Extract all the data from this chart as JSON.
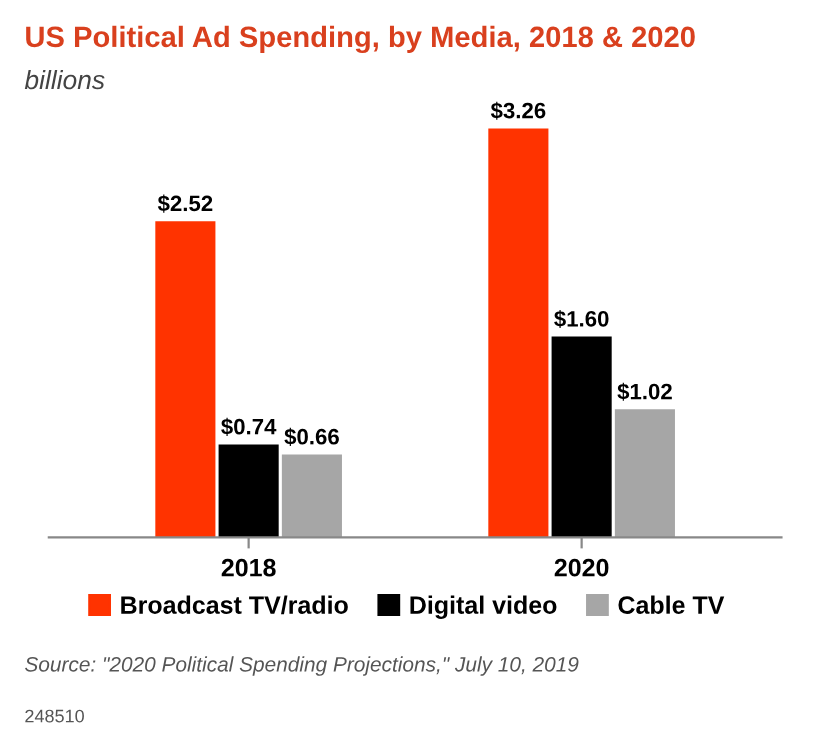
{
  "chart_data": {
    "type": "bar",
    "title": "US Political Ad Spending, by Media, 2018 & 2020",
    "subtitle": "billions",
    "categories": [
      "2018",
      "2020"
    ],
    "series": [
      {
        "name": "Broadcast TV/radio",
        "color": "#ff3300",
        "values": [
          2.52,
          3.26
        ],
        "value_labels": [
          "$2.52",
          "$3.26"
        ]
      },
      {
        "name": "Digital video",
        "color": "#000000",
        "values": [
          0.74,
          1.6
        ],
        "value_labels": [
          "$0.74",
          "$1.60"
        ]
      },
      {
        "name": "Cable TV",
        "color": "#a6a6a6",
        "values": [
          0.66,
          1.02
        ],
        "value_labels": [
          "$0.66",
          "$1.02"
        ]
      }
    ],
    "legend": "bottom",
    "grid": false,
    "annotations": [
      "Source: \"2020 Political Spending Projections,\" July 10, 2019",
      "248510"
    ]
  }
}
